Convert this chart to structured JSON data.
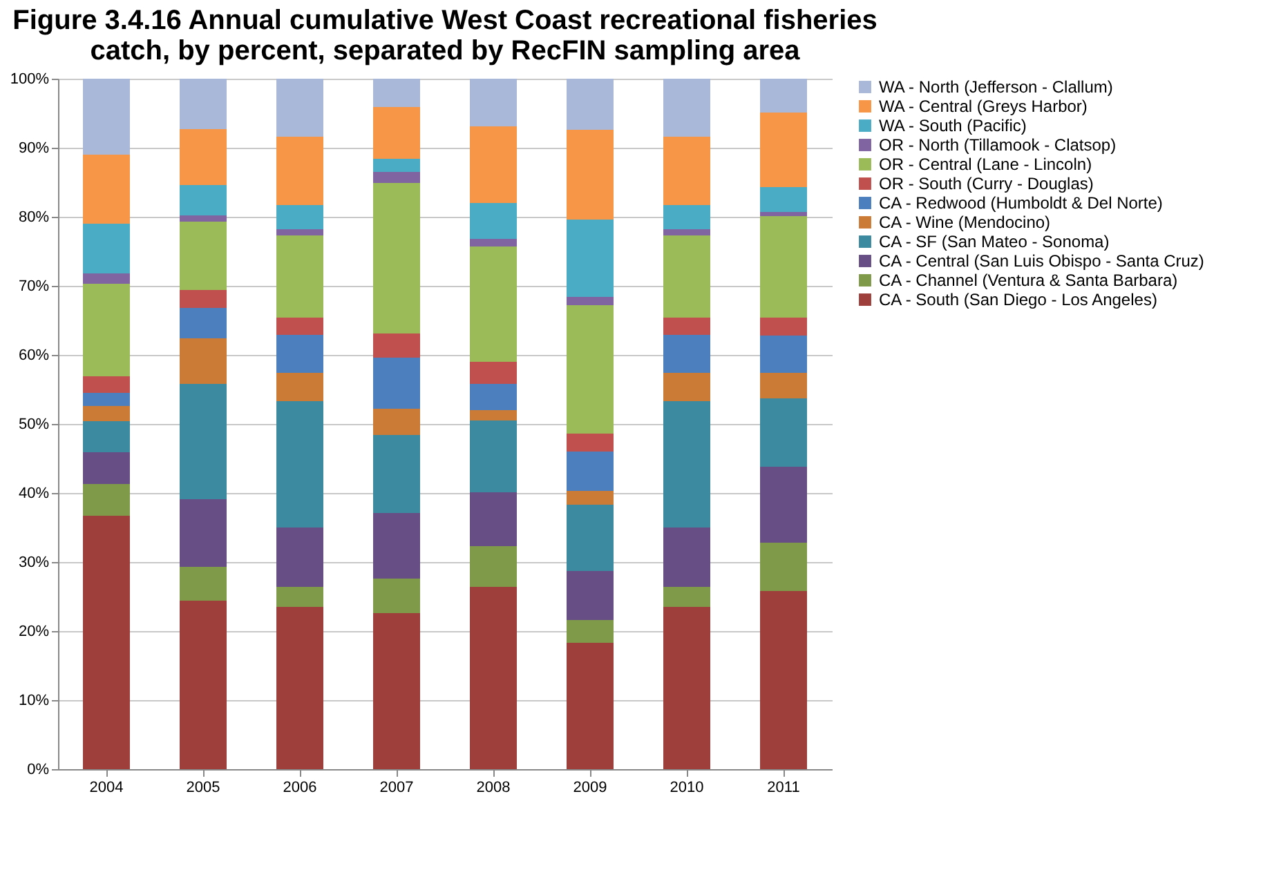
{
  "chart_data": {
    "type": "bar",
    "stacked": true,
    "title": "Figure 3.4.16  Annual cumulative West Coast recreational fisheries\ncatch, by percent, separated by RecFIN sampling area",
    "categories": [
      "2004",
      "2005",
      "2006",
      "2007",
      "2008",
      "2009",
      "2010",
      "2011"
    ],
    "ylim": [
      0,
      100
    ],
    "yticks": [
      {
        "value": 0,
        "label": "0%"
      },
      {
        "value": 10,
        "label": "10%"
      },
      {
        "value": 20,
        "label": "20%"
      },
      {
        "value": 30,
        "label": "30%"
      },
      {
        "value": 40,
        "label": "40%"
      },
      {
        "value": 50,
        "label": "50%"
      },
      {
        "value": 60,
        "label": "60%"
      },
      {
        "value": 70,
        "label": "70%"
      },
      {
        "value": 80,
        "label": "80%"
      },
      {
        "value": 90,
        "label": "90%"
      },
      {
        "value": 100,
        "label": "100%"
      }
    ],
    "grid": "y",
    "legend": "right",
    "series": [
      {
        "name": "CA - South (San Diego - Los Angeles)",
        "color": "#9e3f3c",
        "values": [
          36.7,
          24.4,
          23.5,
          22.6,
          26.4,
          18.3,
          23.5,
          25.8
        ]
      },
      {
        "name": "CA - Channel (Ventura & Santa Barbara)",
        "color": "#7f9a48",
        "values": [
          4.6,
          4.9,
          2.9,
          5.0,
          5.9,
          3.3,
          2.9,
          7.0
        ]
      },
      {
        "name": "CA - Central (San Luis Obispo - Santa Cruz)",
        "color": "#674f85",
        "values": [
          4.6,
          9.8,
          8.6,
          9.5,
          7.8,
          7.1,
          8.6,
          11.0
        ]
      },
      {
        "name": "CA - SF (San Mateo - Sonoma)",
        "color": "#3b8aa0",
        "values": [
          4.5,
          16.7,
          18.3,
          11.3,
          10.4,
          9.6,
          18.3,
          9.9
        ]
      },
      {
        "name": "CA - Wine (Mendocino)",
        "color": "#cc7b37",
        "values": [
          2.2,
          6.6,
          4.1,
          3.8,
          1.5,
          2.0,
          4.1,
          3.7
        ]
      },
      {
        "name": "CA - Redwood (Humboldt & Del Norte)",
        "color": "#4b7fbd",
        "values": [
          1.9,
          4.4,
          5.5,
          7.4,
          3.8,
          5.7,
          5.5,
          5.4
        ]
      },
      {
        "name": "OR - South (Curry - Douglas)",
        "color": "#c0504d",
        "values": [
          2.4,
          2.6,
          2.5,
          3.5,
          3.2,
          2.6,
          2.5,
          2.6
        ]
      },
      {
        "name": "OR - Central (Lane - Lincoln)",
        "color": "#9bbb59",
        "values": [
          13.4,
          9.9,
          11.9,
          21.8,
          16.7,
          18.6,
          11.9,
          14.7
        ]
      },
      {
        "name": "OR - North (Tillamook - Clatsop)",
        "color": "#8064a2",
        "values": [
          1.5,
          0.9,
          0.9,
          1.6,
          1.1,
          1.2,
          0.9,
          0.6
        ]
      },
      {
        "name": "WA - South (Pacific)",
        "color": "#4bacc6",
        "values": [
          7.2,
          4.4,
          3.5,
          1.9,
          5.2,
          11.2,
          3.5,
          3.6
        ]
      },
      {
        "name": "WA - Central (Greys Harbor)",
        "color": "#f79646",
        "values": [
          10.0,
          8.1,
          9.9,
          7.5,
          11.1,
          13.0,
          9.9,
          10.8
        ]
      },
      {
        "name": "WA - North (Jefferson - Clallum)",
        "color": "#a9b8d8",
        "values": [
          11.0,
          7.3,
          8.4,
          4.1,
          6.9,
          7.4,
          8.4,
          4.9
        ]
      }
    ]
  }
}
